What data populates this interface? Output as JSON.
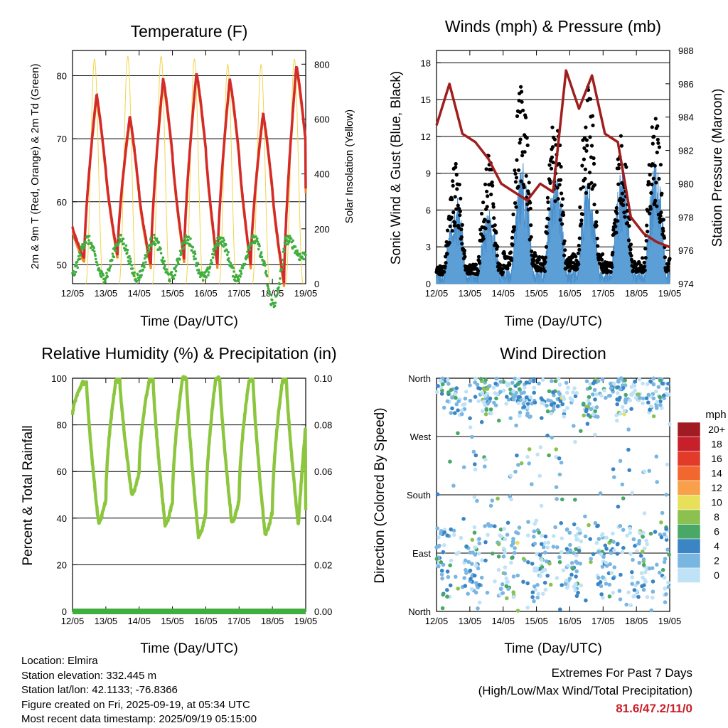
{
  "x_ticks": [
    "12/05",
    "13/05",
    "14/05",
    "15/05",
    "16/05",
    "17/05",
    "18/05",
    "19/05"
  ],
  "x_label": "Time (Day/UTC)",
  "charts": {
    "temperature": {
      "title": "Temperature (F)",
      "ylabel_left": "2m & 9m T (Red, Orange) & 2m Td (Green)",
      "ylabel_right": "Solar Insolation (Yellow)",
      "y_left_ticks": [
        "50",
        "60",
        "70",
        "80"
      ],
      "y_right_ticks": [
        "0",
        "200",
        "400",
        "600",
        "800"
      ]
    },
    "winds": {
      "title": "Winds (mph) & Pressure (mb)",
      "ylabel_left": "Sonic Wind & Gust (Blue, Black)",
      "ylabel_right": "Station Pressure (Maroon)",
      "y_left_ticks": [
        "0",
        "3",
        "6",
        "9",
        "12",
        "15",
        "18"
      ],
      "y_right_ticks": [
        "974",
        "976",
        "978",
        "980",
        "982",
        "984",
        "986",
        "988"
      ]
    },
    "humidity": {
      "title": "Relative Humidity (%) & Precipitation (in)",
      "ylabel_left": "Percent & Total Rainfall",
      "y_left_ticks": [
        "0",
        "20",
        "40",
        "60",
        "80",
        "100"
      ],
      "y_right_ticks": [
        "0.00",
        "0.02",
        "0.04",
        "0.06",
        "0.08",
        "0.10"
      ]
    },
    "direction": {
      "title": "Wind Direction",
      "ylabel_left": "Direction (Colored By Speed)",
      "y_left_ticks": [
        "North",
        "East",
        "South",
        "West",
        "North"
      ],
      "legend_title": "mph",
      "legend_labels": [
        "20+",
        "18",
        "16",
        "14",
        "12",
        "10",
        "8",
        "6",
        "4",
        "2",
        "0"
      ],
      "legend_colors": [
        "#a01c22",
        "#c8202b",
        "#e23b2a",
        "#f2672e",
        "#f8a04a",
        "#e9e05a",
        "#8cc152",
        "#4aa866",
        "#3b85c4",
        "#7ab6e2",
        "#bfe2f6"
      ]
    }
  },
  "info": {
    "location": "Location: Elmira",
    "elevation": "Station elevation: 332.445 m",
    "latlon": "Station lat/lon: 42.1133; -76.8366",
    "created": "Figure created on Fri, 2025-09-19, at 05:34 UTC",
    "recent": "Most recent data timestamp: 2025/09/19 05:15:00"
  },
  "extremes": {
    "title": "Extremes For Past 7 Days",
    "subtitle": "(High/Low/Max Wind/Total Precipitation)",
    "values": "81.6/47.2/11/0"
  },
  "chart_data": [
    {
      "type": "line",
      "x": [
        "12/05",
        "13/05",
        "14/05",
        "15/05",
        "16/05",
        "17/05",
        "18/05",
        "19/05"
      ],
      "daily_high_temp_f": [
        77,
        73.5,
        79.5,
        80.5,
        79.5,
        74,
        81.6
      ],
      "daily_low_temp_f": [
        51,
        51.5,
        50,
        51,
        50,
        50,
        47.2
      ],
      "dewpoint_range_f": [
        47,
        58
      ],
      "solar_peak_wm2": [
        820,
        830,
        830,
        820,
        800,
        800,
        820,
        800
      ],
      "ylim": [
        47,
        84
      ],
      "ylim_right": [
        0,
        850
      ]
    },
    {
      "type": "scatter",
      "x": [
        "12/05",
        "13/05",
        "14/05",
        "15/05",
        "16/05",
        "17/05",
        "18/05",
        "19/05"
      ],
      "daily_max_gust_mph": [
        10,
        10.5,
        17.3,
        14.5,
        16.5,
        12.5,
        14
      ],
      "daily_max_sonic_mph": [
        7,
        5.5,
        9,
        9,
        8.5,
        9,
        9.5
      ],
      "pressure_mb": [
        983.5,
        986,
        983,
        982.5,
        981.5,
        980,
        979.5,
        979,
        980,
        979.5,
        986.8,
        984.5,
        986.5,
        983,
        982.5,
        978,
        977,
        976.5,
        976.2
      ],
      "ylim": [
        0,
        19
      ],
      "ylim_right": [
        974,
        988
      ]
    },
    {
      "type": "line",
      "x": [
        "12/05",
        "13/05",
        "14/05",
        "15/05",
        "16/05",
        "17/05",
        "18/05",
        "19/05"
      ],
      "rh_daily_max": [
        98,
        99,
        99,
        100,
        100,
        99,
        99
      ],
      "rh_daily_min": [
        38,
        50,
        37,
        32,
        38,
        33,
        37
      ],
      "rh_final": 80,
      "precip_total_in": 0,
      "ylim": [
        0,
        100
      ],
      "ylim_right": [
        0,
        0.1
      ]
    },
    {
      "type": "scatter",
      "x": [
        "12/05",
        "13/05",
        "14/05",
        "15/05",
        "16/05",
        "17/05",
        "18/05",
        "19/05"
      ],
      "y_categories": [
        "North",
        "East",
        "South",
        "West",
        "North"
      ],
      "speed_range_mph": [
        0,
        10
      ]
    }
  ]
}
